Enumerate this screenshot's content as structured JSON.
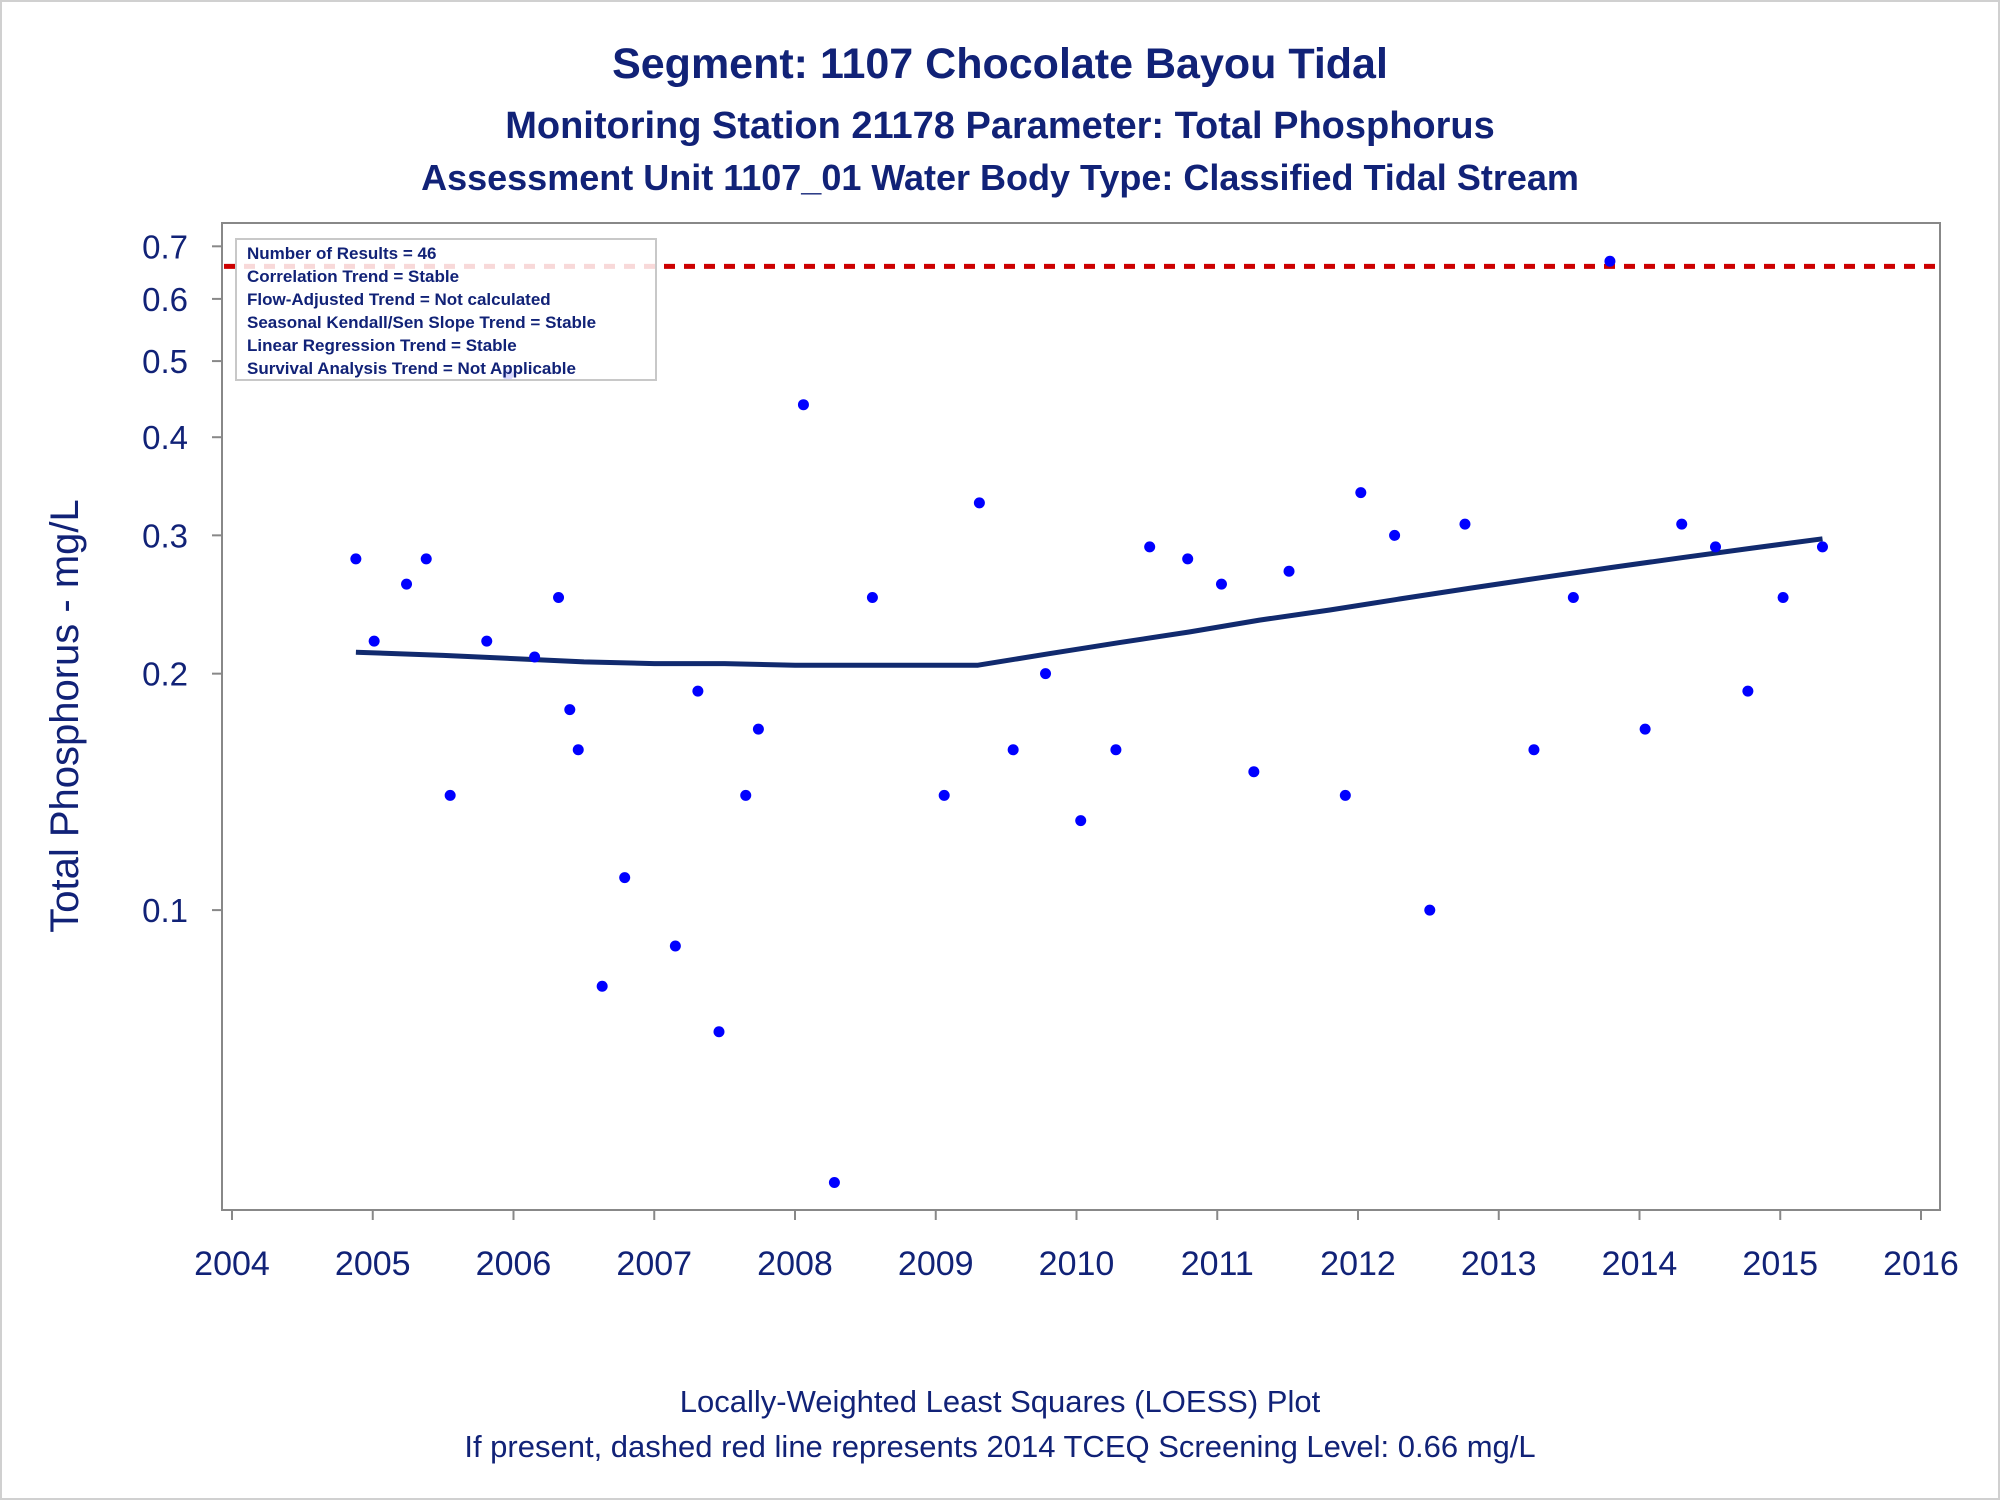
{
  "colors": {
    "text": "#112277",
    "point": "#0000ff",
    "loess_line": "#112a6e",
    "screening_line": "#cc0000",
    "axis": "#888888"
  },
  "chart_data": {
    "type": "scatter",
    "title": "Segment: 1107  Chocolate Bayou Tidal",
    "subtitle": "Monitoring Station 21178 Parameter: Total Phosphorus",
    "subtitle2": "Assessment Unit 1107_01   Water Body Type: Classified Tidal Stream",
    "xlabel": "",
    "ylabel": "Total Phosphorus - mg/L",
    "yscale": "log",
    "xlim": [
      2004,
      2016
    ],
    "ylim": [
      0.043,
      0.73
    ],
    "x_ticks": [
      "2004",
      "2005",
      "2006",
      "2007",
      "2008",
      "2009",
      "2010",
      "2011",
      "2012",
      "2013",
      "2014",
      "2015",
      "2016"
    ],
    "y_ticks": [
      "0.1",
      "0.2",
      "0.3",
      "0.4",
      "0.5",
      "0.6",
      "0.7"
    ],
    "grid": false,
    "legend": null,
    "stats_box": {
      "placement": "top-left",
      "lines": [
        "Number of Results = 46",
        "Correlation Trend = Stable",
        "Flow-Adjusted Trend = Not calculated",
        "Seasonal Kendall/Sen Slope Trend = Stable",
        "Linear Regression Trend = Stable",
        "Survival Analysis Trend = Not Applicable"
      ]
    },
    "screening_level": 0.66,
    "points": [
      {
        "x": 2004.88,
        "y": 0.28
      },
      {
        "x": 2005.01,
        "y": 0.22
      },
      {
        "x": 2005.24,
        "y": 0.26
      },
      {
        "x": 2005.38,
        "y": 0.28
      },
      {
        "x": 2005.55,
        "y": 0.14
      },
      {
        "x": 2005.81,
        "y": 0.22
      },
      {
        "x": 2005.96,
        "y": 0.48
      },
      {
        "x": 2006.15,
        "y": 0.21
      },
      {
        "x": 2006.32,
        "y": 0.25
      },
      {
        "x": 2006.4,
        "y": 0.18
      },
      {
        "x": 2006.46,
        "y": 0.16
      },
      {
        "x": 2006.63,
        "y": 0.08
      },
      {
        "x": 2006.79,
        "y": 0.11
      },
      {
        "x": 2007.15,
        "y": 0.09
      },
      {
        "x": 2007.31,
        "y": 0.19
      },
      {
        "x": 2007.46,
        "y": 0.07
      },
      {
        "x": 2007.65,
        "y": 0.14
      },
      {
        "x": 2007.74,
        "y": 0.17
      },
      {
        "x": 2008.06,
        "y": 0.44
      },
      {
        "x": 2008.28,
        "y": 0.045
      },
      {
        "x": 2008.55,
        "y": 0.25
      },
      {
        "x": 2009.06,
        "y": 0.14
      },
      {
        "x": 2009.31,
        "y": 0.33
      },
      {
        "x": 2009.55,
        "y": 0.16
      },
      {
        "x": 2009.78,
        "y": 0.2
      },
      {
        "x": 2010.03,
        "y": 0.13
      },
      {
        "x": 2010.28,
        "y": 0.16
      },
      {
        "x": 2010.52,
        "y": 0.29
      },
      {
        "x": 2010.79,
        "y": 0.28
      },
      {
        "x": 2011.03,
        "y": 0.26
      },
      {
        "x": 2011.26,
        "y": 0.15
      },
      {
        "x": 2011.51,
        "y": 0.27
      },
      {
        "x": 2011.91,
        "y": 0.14
      },
      {
        "x": 2012.02,
        "y": 0.34
      },
      {
        "x": 2012.26,
        "y": 0.3
      },
      {
        "x": 2012.51,
        "y": 0.1
      },
      {
        "x": 2012.76,
        "y": 0.31
      },
      {
        "x": 2013.25,
        "y": 0.16
      },
      {
        "x": 2013.53,
        "y": 0.25
      },
      {
        "x": 2013.79,
        "y": 0.67
      },
      {
        "x": 2014.04,
        "y": 0.17
      },
      {
        "x": 2014.3,
        "y": 0.31
      },
      {
        "x": 2014.54,
        "y": 0.29
      },
      {
        "x": 2014.77,
        "y": 0.19
      },
      {
        "x": 2015.02,
        "y": 0.25
      },
      {
        "x": 2015.3,
        "y": 0.29
      }
    ],
    "loess": [
      {
        "x": 2004.88,
        "y": 0.213
      },
      {
        "x": 2005.5,
        "y": 0.211
      },
      {
        "x": 2006.0,
        "y": 0.209
      },
      {
        "x": 2006.5,
        "y": 0.207
      },
      {
        "x": 2007.0,
        "y": 0.206
      },
      {
        "x": 2007.5,
        "y": 0.206
      },
      {
        "x": 2008.0,
        "y": 0.205
      },
      {
        "x": 2008.5,
        "y": 0.205
      },
      {
        "x": 2009.0,
        "y": 0.205
      },
      {
        "x": 2009.3,
        "y": 0.205
      },
      {
        "x": 2009.8,
        "y": 0.212
      },
      {
        "x": 2010.3,
        "y": 0.219
      },
      {
        "x": 2010.8,
        "y": 0.226
      },
      {
        "x": 2011.3,
        "y": 0.234
      },
      {
        "x": 2011.8,
        "y": 0.241
      },
      {
        "x": 2012.3,
        "y": 0.249
      },
      {
        "x": 2012.8,
        "y": 0.257
      },
      {
        "x": 2013.3,
        "y": 0.265
      },
      {
        "x": 2013.8,
        "y": 0.273
      },
      {
        "x": 2014.3,
        "y": 0.281
      },
      {
        "x": 2014.8,
        "y": 0.289
      },
      {
        "x": 2015.3,
        "y": 0.297
      }
    ],
    "footnotes": [
      "Locally-Weighted Least Squares (LOESS) Plot",
      "If present, dashed red line represents 2014 TCEQ Screening Level: 0.66 mg/L"
    ]
  }
}
